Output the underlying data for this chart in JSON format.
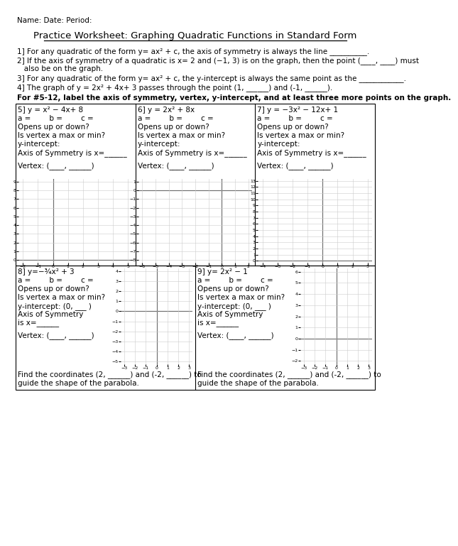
{
  "title": "Practice Worksheet: Graphing Quadratic Functions in Standard Form",
  "header": "Name: Date: Period:",
  "q1": "1] For any quadratic of the form y= ax² + c, the axis of symmetry is always the line __________.",
  "q2a": "2] If the axis of symmetry of a quadratic is x= 2 and (−1, 3) is on the graph, then the point (____, ____) must",
  "q2b": "   also be on the graph.",
  "q3": "3] For any quadratic of the form y= ax² + c, the y-intercept is always the same point as the ____________.",
  "q4": "4] The graph of y = 2x² + 4x+ 3 passes through the point (1, ______) and (-1, ______).",
  "bold_instr": "For #5-12, label the axis of symmetry, vertex, y-intercept, and at least three more points on the graph.",
  "p5_eq": "5] y = x² − 4x+ 8",
  "p6_eq": "6] y = 2x² + 8x",
  "p7_eq": "7] y = −3x² − 12x+ 1",
  "p8_eq": "8] y=−¾x² + 3",
  "p9_eq": "9] y= 2x² − 1",
  "abc_line": "a =        b =        c =",
  "opens": "Opens up or down?",
  "vertex_max": "Is vertex a max or min?",
  "yint": "y-intercept:",
  "yint_paren": "y-intercept: (0, ___ )",
  "aos": "Axis of Symmetry is x=______",
  "aos2a": "Axis of Symmetry",
  "aos2b": "is x=______",
  "vertex_line": "Vertex: (____, ______)",
  "find_coords": "Find the coordinates (2, ______) and (-2, ______) to",
  "guide": "guide the shape of the parabola.",
  "p5_xlim": [
    -2,
    5
  ],
  "p5_ylim": [
    0,
    9
  ],
  "p5_xticks": [
    -2,
    -1,
    0,
    1,
    2,
    3,
    4,
    5
  ],
  "p5_yticks": [
    0,
    1,
    2,
    3,
    4,
    5,
    6,
    7,
    8,
    9
  ],
  "p6_xlim": [
    -6,
    2
  ],
  "p6_ylim": [
    -8,
    1
  ],
  "p6_xticks": [
    -6,
    -5,
    -4,
    -3,
    -2,
    -1,
    0,
    1,
    2
  ],
  "p6_yticks": [
    -8,
    -7,
    -6,
    -5,
    -4,
    -3,
    -2,
    -1,
    0,
    1
  ],
  "p7_xlim": [
    -4,
    3
  ],
  "p7_ylim": [
    0,
    13
  ],
  "p7_xticks": [
    -4,
    -3,
    -2,
    -1,
    0,
    1,
    2,
    3
  ],
  "p7_yticks": [
    0,
    1,
    2,
    3,
    4,
    5,
    6,
    7,
    8,
    9,
    10,
    11,
    12,
    13
  ],
  "p8_xlim": [
    -3,
    3
  ],
  "p8_ylim": [
    -5,
    4
  ],
  "p8_xticks": [
    -3,
    -2,
    -1,
    0,
    1,
    2,
    3
  ],
  "p8_yticks": [
    -5,
    -4,
    -3,
    -2,
    -1,
    0,
    1,
    2,
    3,
    4
  ],
  "p9_xlim": [
    -3,
    3
  ],
  "p9_ylim": [
    -2,
    6
  ],
  "p9_xticks": [
    -3,
    -2,
    -1,
    0,
    1,
    2,
    3
  ],
  "p9_yticks": [
    -2,
    -1,
    0,
    1,
    2,
    3,
    4,
    5,
    6
  ],
  "bg": "#ffffff",
  "fg": "#000000",
  "grid_c": "#cccccc"
}
